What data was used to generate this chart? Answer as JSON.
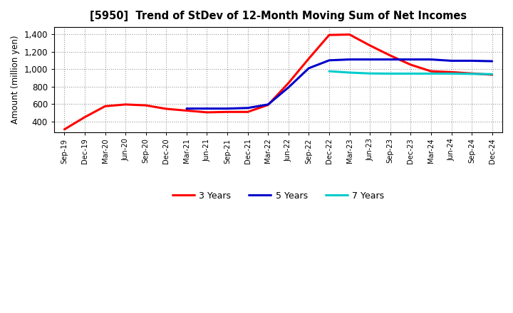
{
  "title": "[5950]  Trend of StDev of 12-Month Moving Sum of Net Incomes",
  "ylabel": "Amount (million yen)",
  "background_color": "#ffffff",
  "grid_color": "#aaaaaa",
  "ylim": [
    280,
    1480
  ],
  "yticks": [
    400,
    600,
    800,
    1000,
    1200,
    1400
  ],
  "x_labels": [
    "Sep-19",
    "Dec-19",
    "Mar-20",
    "Jun-20",
    "Sep-20",
    "Dec-20",
    "Mar-21",
    "Jun-21",
    "Sep-21",
    "Dec-21",
    "Mar-22",
    "Jun-22",
    "Sep-22",
    "Dec-22",
    "Mar-23",
    "Jun-23",
    "Sep-23",
    "Dec-23",
    "Mar-24",
    "Jun-24",
    "Sep-24",
    "Dec-24"
  ],
  "series": {
    "3 Years": {
      "color": "#ff0000",
      "linewidth": 2.2,
      "values": [
        310,
        450,
        575,
        595,
        585,
        545,
        525,
        505,
        510,
        510,
        590,
        840,
        1120,
        1390,
        1395,
        1270,
        1155,
        1050,
        975,
        965,
        950,
        935
      ]
    },
    "5 Years": {
      "color": "#0000cc",
      "linewidth": 2.2,
      "values": [
        null,
        null,
        null,
        null,
        null,
        null,
        548,
        548,
        548,
        555,
        595,
        790,
        1010,
        1100,
        1110,
        1110,
        1110,
        1110,
        1110,
        1095,
        1095,
        1090
      ]
    },
    "7 Years": {
      "color": "#00cccc",
      "linewidth": 2.2,
      "values": [
        null,
        null,
        null,
        null,
        null,
        null,
        null,
        null,
        null,
        null,
        null,
        null,
        null,
        975,
        960,
        950,
        948,
        948,
        948,
        948,
        945,
        942
      ]
    },
    "10 Years": {
      "color": "#008000",
      "linewidth": 2.2,
      "values": [
        null,
        null,
        null,
        null,
        null,
        null,
        null,
        null,
        null,
        null,
        null,
        null,
        null,
        null,
        null,
        null,
        null,
        null,
        null,
        null,
        null,
        null
      ]
    }
  }
}
